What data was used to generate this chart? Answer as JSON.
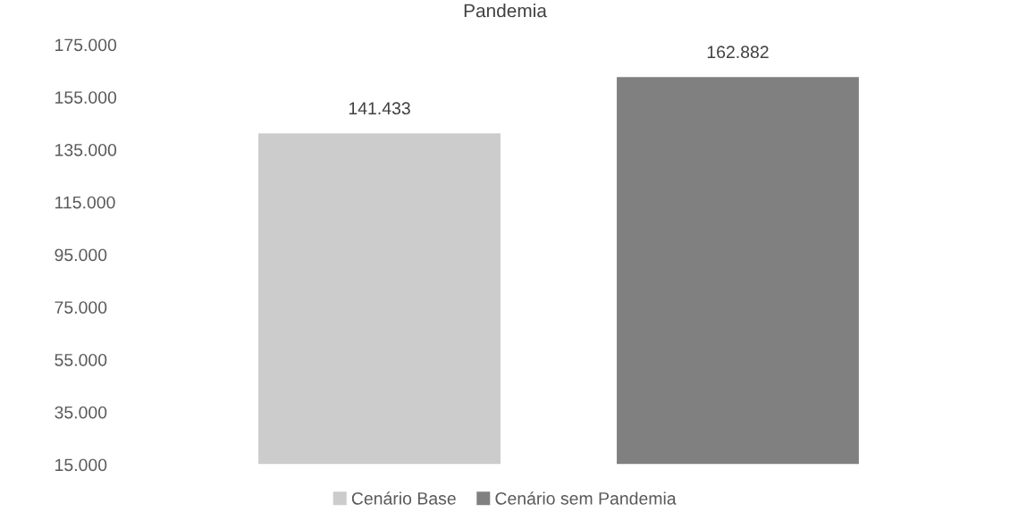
{
  "chart_data": {
    "type": "bar",
    "title": "Pandemia",
    "categories": [
      null
    ],
    "series": [
      {
        "name": "Cenário Base",
        "color": "#cccccc",
        "values": [
          141433
        ],
        "value_labels": [
          "141.433"
        ]
      },
      {
        "name": "Cenário sem Pandemia",
        "color": "#808080",
        "values": [
          162882
        ],
        "value_labels": [
          "162.882"
        ]
      }
    ],
    "ylim": [
      15000,
      175000
    ],
    "yticks": [
      {
        "value": 15000,
        "label": "15.000"
      },
      {
        "value": 35000,
        "label": "35.000"
      },
      {
        "value": 55000,
        "label": "55.000"
      },
      {
        "value": 75000,
        "label": "75.000"
      },
      {
        "value": 95000,
        "label": "95.000"
      },
      {
        "value": 115000,
        "label": "115.000"
      },
      {
        "value": 135000,
        "label": "135.000"
      },
      {
        "value": 155000,
        "label": "155.000"
      },
      {
        "value": 175000,
        "label": "175.000"
      }
    ],
    "grid": false,
    "legend": "bottom"
  }
}
